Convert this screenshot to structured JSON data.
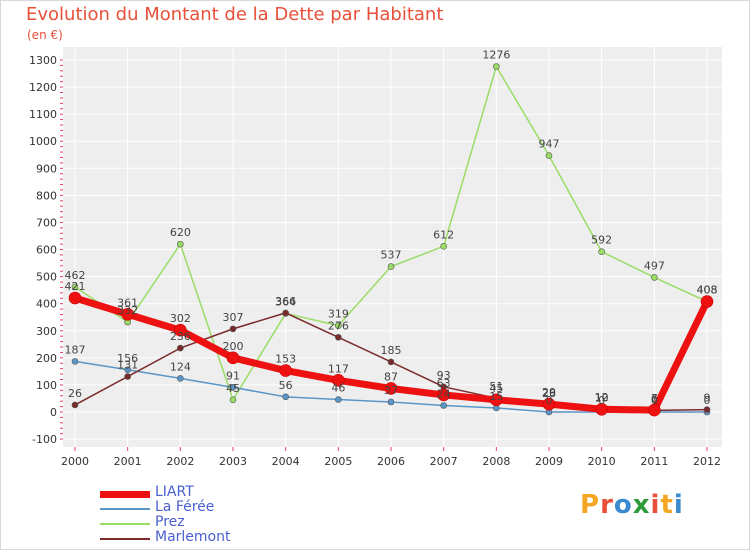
{
  "title": "Evolution du Montant de la Dette par Habitant",
  "subtitle": "(en €)",
  "logo": {
    "text": "Proxiti",
    "letter_colors": [
      "#f5a623",
      "#e8503a",
      "#3a8ad0",
      "#2e9b3a",
      "#e8503a",
      "#f5a623",
      "#3a8ad0"
    ]
  },
  "chart_data": {
    "type": "line",
    "x": [
      "2000",
      "2001",
      "2002",
      "2003",
      "2004",
      "2005",
      "2006",
      "2007",
      "2008",
      "2009",
      "2010",
      "2011",
      "2012"
    ],
    "ylim": [
      -100,
      1300
    ],
    "yticks": [
      "-100",
      "0",
      "100",
      "200",
      "300",
      "400",
      "500",
      "600",
      "700",
      "800",
      "900",
      "1000",
      "1100",
      "1200",
      "1300"
    ],
    "grid": true,
    "legend_position": "bottom-left",
    "series": [
      {
        "name": "LIART",
        "color": "#ee1111",
        "values": [
          421,
          361,
          302,
          200,
          153,
          117,
          87,
          63,
          45,
          29,
          10,
          7,
          408
        ],
        "labels": [
          "421",
          "361",
          "302",
          "200",
          "153",
          "117",
          "87",
          "63",
          "45",
          "29",
          "10",
          "7",
          "408"
        ]
      },
      {
        "name": "La Férée",
        "color": "#5b96c8",
        "values": [
          187,
          156,
          124,
          91,
          56,
          46,
          37,
          24,
          15,
          0,
          0,
          0,
          0
        ],
        "labels": [
          "187",
          "156",
          "124",
          "91",
          "56",
          "46",
          "37",
          "24",
          "15",
          "0",
          "0",
          "0",
          "0"
        ]
      },
      {
        "name": "Prez",
        "color": "#99dd66",
        "values": [
          462,
          332,
          620,
          45,
          364,
          319,
          537,
          612,
          1276,
          947,
          592,
          497,
          408
        ],
        "labels": [
          "462",
          "332",
          "620",
          "45",
          "364",
          "319",
          "537",
          "612",
          "1276",
          "947",
          "592",
          "497",
          "408"
        ]
      },
      {
        "name": "Marlemont",
        "color": "#7a2a2a",
        "values": [
          26,
          131,
          236,
          307,
          366,
          276,
          185,
          93,
          51,
          26,
          12,
          6,
          9
        ],
        "labels": [
          "26",
          "131",
          "236",
          "307",
          "366",
          "276",
          "185",
          "93",
          "51",
          "26",
          "12",
          "6",
          "9"
        ]
      }
    ]
  }
}
